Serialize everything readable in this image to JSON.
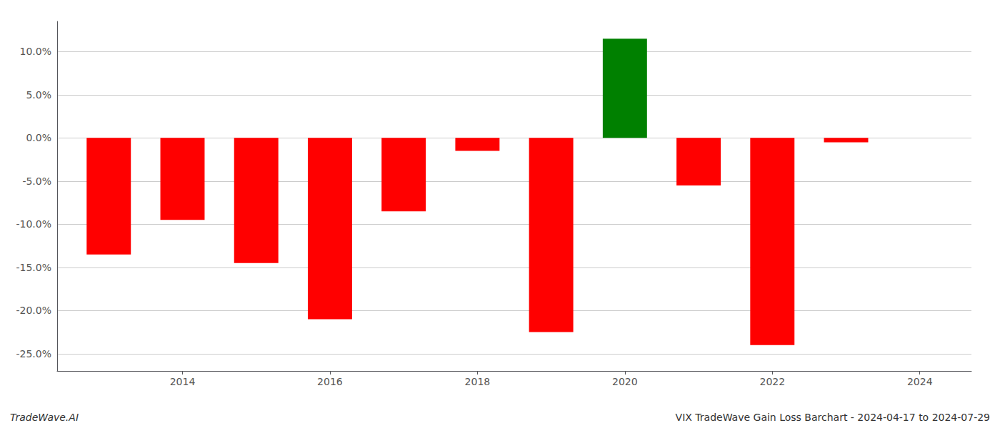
{
  "chart_data": {
    "type": "bar",
    "x": [
      2013,
      2014,
      2015,
      2016,
      2017,
      2018,
      2019,
      2020,
      2021,
      2022,
      2023
    ],
    "values": [
      -0.135,
      -0.095,
      -0.145,
      -0.21,
      -0.085,
      -0.015,
      -0.225,
      0.115,
      -0.055,
      -0.24,
      -0.005
    ],
    "colors": [
      "#ff0000",
      "#ff0000",
      "#ff0000",
      "#ff0000",
      "#ff0000",
      "#ff0000",
      "#ff0000",
      "#008000",
      "#ff0000",
      "#ff0000",
      "#ff0000"
    ],
    "xlim": [
      2012.3,
      2024.7
    ],
    "xticks": [
      2014,
      2016,
      2018,
      2020,
      2022,
      2024
    ],
    "ylim": [
      -0.27,
      0.135
    ],
    "yticks": [
      {
        "value": -0.25,
        "label": "-25.0%"
      },
      {
        "value": -0.2,
        "label": "-20.0%"
      },
      {
        "value": -0.15,
        "label": "-15.0%"
      },
      {
        "value": -0.1,
        "label": "-10.0%"
      },
      {
        "value": -0.05,
        "label": "-5.0%"
      },
      {
        "value": 0.0,
        "label": "0.0%"
      },
      {
        "value": 0.05,
        "label": "5.0%"
      },
      {
        "value": 0.1,
        "label": "10.0%"
      }
    ],
    "grid": true,
    "annotations": [
      "TradeWave.AI",
      "VIX TradeWave Gain Loss Barchart - 2024-04-17 to 2024-07-29"
    ]
  }
}
